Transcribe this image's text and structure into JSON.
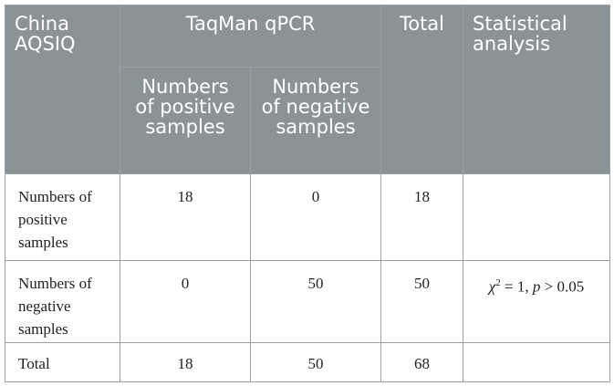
{
  "header": {
    "row_group_label": "China AQSIQ",
    "method_label": "TaqMan qPCR",
    "total_label": "Total",
    "stat_label": "Statistical analysis",
    "col_positive": "Numbers of positive samples",
    "col_negative": "Numbers of negative samples"
  },
  "rows": [
    {
      "label": "Numbers of positive samples",
      "positive": "18",
      "negative": "0",
      "total": "18",
      "stat": ""
    },
    {
      "label": "Numbers of negative samples",
      "positive": "0",
      "negative": "50",
      "total": "50",
      "stat": "χ2 = 1, p > 0.05"
    },
    {
      "label": "Total",
      "positive": "18",
      "negative": "50",
      "total": "68",
      "stat": ""
    }
  ],
  "stat_parts": {
    "chi": "χ",
    "sup": "2",
    "mid": " = 1, ",
    "p": "p",
    "tail": " > 0.05"
  }
}
